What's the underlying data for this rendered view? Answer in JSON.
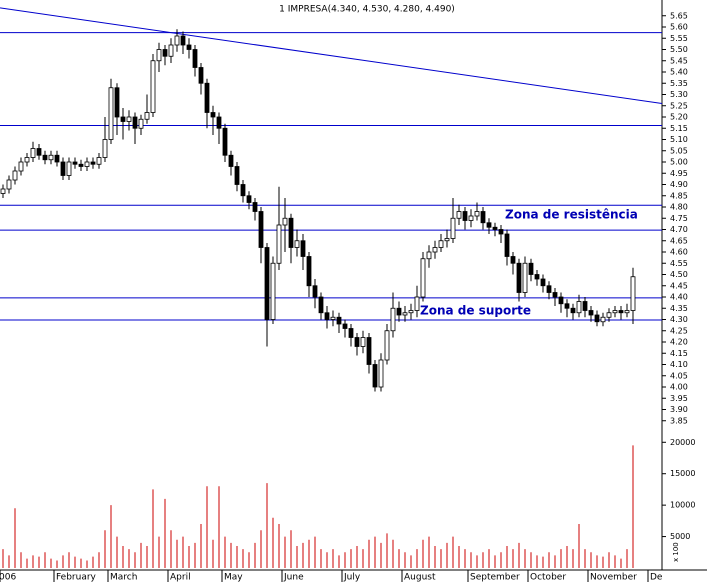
{
  "chart_data": {
    "type": "candlestick",
    "title": "1 IMPRESA(4.340, 4.530, 4.280, 4.490)",
    "categories": [
      "006",
      null,
      null,
      null,
      null,
      null,
      null,
      null,
      null,
      "February",
      null,
      null,
      null,
      null,
      null,
      null,
      null,
      null,
      "March",
      null,
      null,
      null,
      null,
      null,
      null,
      null,
      null,
      null,
      "April",
      null,
      null,
      null,
      null,
      null,
      null,
      null,
      null,
      "May",
      null,
      null,
      null,
      null,
      null,
      null,
      null,
      null,
      null,
      "June",
      null,
      null,
      null,
      null,
      null,
      null,
      null,
      null,
      null,
      "July",
      null,
      null,
      null,
      null,
      null,
      null,
      null,
      null,
      null,
      "August",
      null,
      null,
      null,
      null,
      null,
      null,
      null,
      null,
      null,
      null,
      "September",
      null,
      null,
      null,
      null,
      null,
      null,
      null,
      null,
      null,
      "October",
      null,
      null,
      null,
      null,
      null,
      null,
      null,
      null,
      null,
      "November",
      null,
      null,
      null,
      null,
      null,
      null,
      null,
      null,
      null,
      "De"
    ],
    "open": [
      4.86,
      4.88,
      4.92,
      4.96,
      5.0,
      5.02,
      5.06,
      5.03,
      5.01,
      5.03,
      5.0,
      4.94,
      5.0,
      4.99,
      4.98,
      5.0,
      4.99,
      5.02,
      5.1,
      5.33,
      5.2,
      5.18,
      5.2,
      5.15,
      5.19,
      5.22,
      5.45,
      5.5,
      5.47,
      5.52,
      5.56,
      5.52,
      5.5,
      5.42,
      5.35,
      5.22,
      5.2,
      5.15,
      5.03,
      4.98,
      4.9,
      4.85,
      4.82,
      4.78,
      4.62,
      4.3,
      4.55,
      4.72,
      4.75,
      4.62,
      4.65,
      4.58,
      4.45,
      4.4,
      4.33,
      4.3,
      4.31,
      4.28,
      4.26,
      4.22,
      4.18,
      4.22,
      4.1,
      4.0,
      4.12,
      4.25,
      4.35,
      4.32,
      4.33,
      4.34,
      4.4,
      4.57,
      4.6,
      4.62,
      4.65,
      4.66,
      4.75,
      4.78,
      4.74,
      4.76,
      4.78,
      4.73,
      4.71,
      4.7,
      4.68,
      4.58,
      4.55,
      4.42,
      4.55,
      4.5,
      4.48,
      4.45,
      4.42,
      4.4,
      4.37,
      4.35,
      4.33,
      4.38,
      4.34,
      4.32,
      4.29,
      4.31,
      4.33,
      4.34,
      4.33,
      4.34,
      null,
      null,
      null
    ],
    "high": [
      4.9,
      4.94,
      4.98,
      5.02,
      5.04,
      5.09,
      5.08,
      5.05,
      5.05,
      5.05,
      5.02,
      5.02,
      5.02,
      5.01,
      5.02,
      5.02,
      5.04,
      5.2,
      5.37,
      5.35,
      5.24,
      5.23,
      5.22,
      5.21,
      5.3,
      5.48,
      5.53,
      5.52,
      5.55,
      5.59,
      5.58,
      5.55,
      5.52,
      5.44,
      5.37,
      5.25,
      5.22,
      5.17,
      5.05,
      5.0,
      4.92,
      4.87,
      4.84,
      4.8,
      4.64,
      4.58,
      4.89,
      4.84,
      4.77,
      4.7,
      4.68,
      4.6,
      4.48,
      4.42,
      4.36,
      4.34,
      4.33,
      4.3,
      4.28,
      4.24,
      4.25,
      4.24,
      4.12,
      4.15,
      4.28,
      4.42,
      4.38,
      4.36,
      4.37,
      4.45,
      4.6,
      4.63,
      4.65,
      4.68,
      4.7,
      4.84,
      4.81,
      4.8,
      4.79,
      4.82,
      4.8,
      4.75,
      4.73,
      4.72,
      4.7,
      4.6,
      4.57,
      4.58,
      4.57,
      4.52,
      4.5,
      4.47,
      4.44,
      4.42,
      4.39,
      4.37,
      4.41,
      4.4,
      4.36,
      4.34,
      4.33,
      4.35,
      4.36,
      4.36,
      4.37,
      4.53,
      null,
      null,
      null
    ],
    "low": [
      4.84,
      4.86,
      4.9,
      4.94,
      4.98,
      5.0,
      5.01,
      4.99,
      4.99,
      4.98,
      4.92,
      4.92,
      4.97,
      4.96,
      4.96,
      4.97,
      4.97,
      5.0,
      5.08,
      5.12,
      5.1,
      5.14,
      5.08,
      5.12,
      5.17,
      5.2,
      5.4,
      5.43,
      5.44,
      5.49,
      5.48,
      5.46,
      5.38,
      5.3,
      5.15,
      5.12,
      5.08,
      5.0,
      4.94,
      4.87,
      4.82,
      4.79,
      4.74,
      4.55,
      4.18,
      4.28,
      4.52,
      4.6,
      4.55,
      4.58,
      4.52,
      4.4,
      4.35,
      4.3,
      4.26,
      4.27,
      4.24,
      4.22,
      4.18,
      4.14,
      4.15,
      4.06,
      3.98,
      3.98,
      4.1,
      4.22,
      4.29,
      4.29,
      4.3,
      4.31,
      4.38,
      4.53,
      4.57,
      4.6,
      4.62,
      4.64,
      4.72,
      4.7,
      4.71,
      4.74,
      4.7,
      4.68,
      4.67,
      4.64,
      4.54,
      4.5,
      4.38,
      4.4,
      4.47,
      4.45,
      4.42,
      4.39,
      4.36,
      4.33,
      4.31,
      4.3,
      4.31,
      4.31,
      4.29,
      4.27,
      4.27,
      4.29,
      4.31,
      4.3,
      4.31,
      4.28,
      null,
      null,
      null
    ],
    "close": [
      4.88,
      4.92,
      4.96,
      5.0,
      5.02,
      5.06,
      5.03,
      5.01,
      5.03,
      5.0,
      4.94,
      5.0,
      4.99,
      4.98,
      5.0,
      4.99,
      5.02,
      5.1,
      5.33,
      5.2,
      5.18,
      5.2,
      5.15,
      5.19,
      5.22,
      5.45,
      5.5,
      5.47,
      5.52,
      5.56,
      5.52,
      5.5,
      5.42,
      5.35,
      5.22,
      5.2,
      5.15,
      5.03,
      4.98,
      4.9,
      4.85,
      4.82,
      4.78,
      4.62,
      4.3,
      4.55,
      4.72,
      4.75,
      4.62,
      4.65,
      4.58,
      4.45,
      4.4,
      4.33,
      4.3,
      4.31,
      4.28,
      4.26,
      4.22,
      4.18,
      4.22,
      4.1,
      4.0,
      4.12,
      4.25,
      4.35,
      4.32,
      4.33,
      4.34,
      4.4,
      4.57,
      4.6,
      4.62,
      4.65,
      4.66,
      4.75,
      4.78,
      4.74,
      4.76,
      4.78,
      4.73,
      4.71,
      4.7,
      4.68,
      4.58,
      4.55,
      4.42,
      4.55,
      4.5,
      4.48,
      4.45,
      4.42,
      4.4,
      4.37,
      4.35,
      4.33,
      4.38,
      4.34,
      4.32,
      4.29,
      4.31,
      4.33,
      4.34,
      4.33,
      4.34,
      4.49,
      null,
      null,
      null
    ],
    "volume": [
      3000,
      2000,
      9500,
      2500,
      1500,
      2000,
      1800,
      2500,
      1500,
      1200,
      2000,
      2500,
      1800,
      1500,
      1200,
      1800,
      2500,
      6000,
      10000,
      5000,
      3500,
      3000,
      2500,
      4000,
      3500,
      12500,
      5000,
      11000,
      6000,
      4500,
      5000,
      3500,
      4000,
      7000,
      13000,
      4500,
      13000,
      5000,
      4000,
      3500,
      3000,
      2500,
      4000,
      6000,
      13500,
      8000,
      7000,
      5000,
      6000,
      3500,
      4000,
      4500,
      5000,
      3000,
      2500,
      3000,
      2000,
      2500,
      3000,
      3500,
      3000,
      4500,
      5000,
      4000,
      5500,
      4500,
      3000,
      2500,
      2000,
      3000,
      4500,
      5000,
      3500,
      3000,
      4000,
      5000,
      3500,
      3000,
      2500,
      2000,
      2500,
      3000,
      2000,
      2500,
      3500,
      3000,
      4000,
      3000,
      2500,
      2000,
      1800,
      2500,
      2000,
      3000,
      3500,
      3000,
      7000,
      3000,
      2500,
      2000,
      1800,
      2500,
      2000,
      1500,
      3000,
      19500,
      null,
      null,
      null
    ],
    "up_color": "#ffffff",
    "down_color": "#000000",
    "line_color": "#0000cc",
    "ylim": [
      3.8,
      5.72
    ],
    "yticks": [
      5.65,
      {
        "value": 5.6,
        "label": "5.60"
      },
      5.55,
      {
        "value": 5.5,
        "label": "5.50"
      },
      5.45,
      {
        "value": 5.4,
        "label": "5.40"
      },
      5.35,
      {
        "value": 5.3,
        "label": "5.30"
      },
      5.25,
      {
        "value": 5.2,
        "label": "5.20"
      },
      5.15,
      {
        "value": 5.1,
        "label": "5.10"
      },
      5.05,
      {
        "value": 5,
        "label": "5.00"
      },
      4.95,
      {
        "value": 4.9,
        "label": "4.90"
      },
      4.85,
      {
        "value": 4.8,
        "label": "4.80"
      },
      4.75,
      {
        "value": 4.7,
        "label": "4.70"
      },
      4.65,
      {
        "value": 4.6,
        "label": "4.60"
      },
      4.55,
      {
        "value": 4.5,
        "label": "4.50"
      },
      4.45,
      {
        "value": 4.4,
        "label": "4.40"
      },
      4.35,
      {
        "value": 4.3,
        "label": "4.30"
      },
      4.25,
      {
        "value": 4.2,
        "label": "4.20"
      },
      4.15,
      {
        "value": 4.1,
        "label": "4.10"
      },
      4.05,
      {
        "value": 4,
        "label": "4.00"
      },
      3.95,
      {
        "value": 3.9,
        "label": "3.90"
      },
      3.85
    ],
    "volume_lim": [
      0,
      21000
    ],
    "volume_ticks": [
      5000,
      10000,
      15000,
      20000
    ],
    "volume_unit": "x 100",
    "hlines": [
      5.575,
      5.162,
      4.808,
      4.697,
      4.396,
      4.298
    ],
    "trendline": [
      5.685,
      5.26
    ],
    "annotations": [
      "Zona de resistência",
      "Zona de suporte"
    ]
  }
}
